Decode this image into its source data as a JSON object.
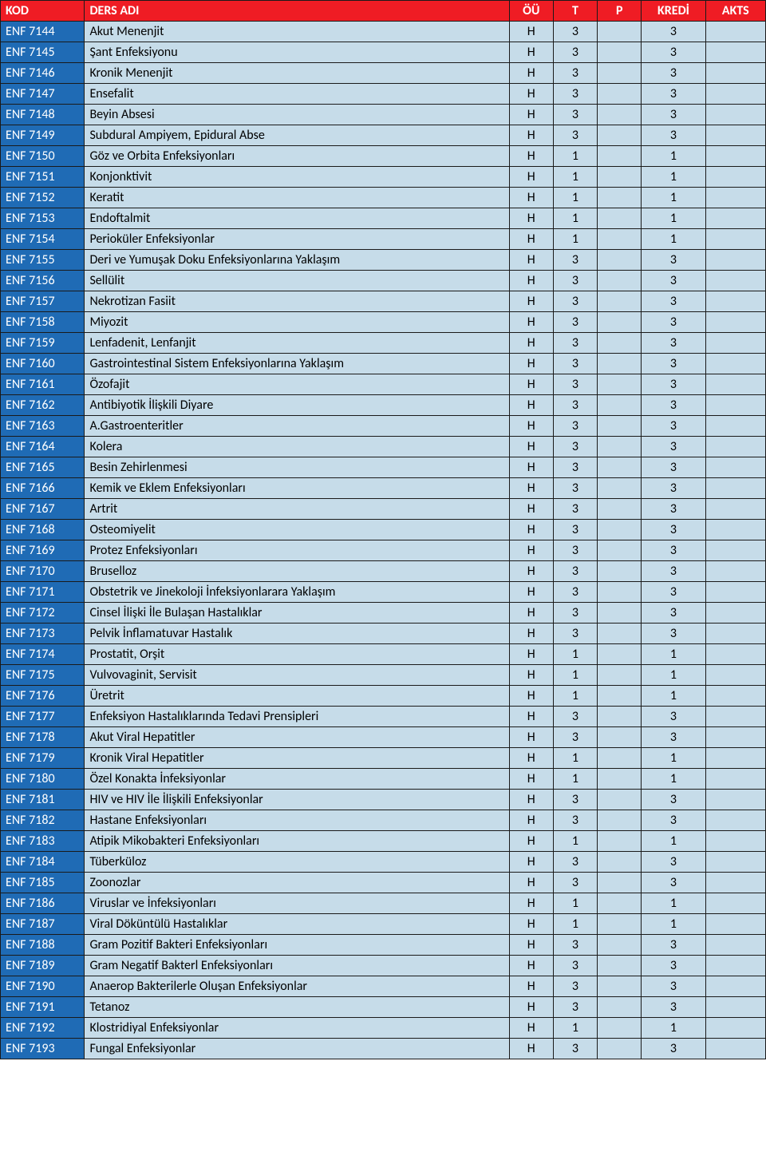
{
  "table": {
    "headers": {
      "kod": "KOD",
      "ders": "DERS ADI",
      "ou": "ÖÜ",
      "t": "T",
      "p": "P",
      "kredi": "KREDİ",
      "akts": "AKTS"
    },
    "rows": [
      {
        "kod": "ENF 7144",
        "ders": "Akut Menenjit",
        "ou": "H",
        "t": "3",
        "p": "",
        "kredi": "3",
        "akts": ""
      },
      {
        "kod": "ENF 7145",
        "ders": "Şant Enfeksiyonu",
        "ou": "H",
        "t": "3",
        "p": "",
        "kredi": "3",
        "akts": ""
      },
      {
        "kod": "ENF 7146",
        "ders": "Kronik Menenjit",
        "ou": "H",
        "t": "3",
        "p": "",
        "kredi": "3",
        "akts": ""
      },
      {
        "kod": "ENF 7147",
        "ders": "Ensefalit",
        "ou": "H",
        "t": "3",
        "p": "",
        "kredi": "3",
        "akts": ""
      },
      {
        "kod": "ENF 7148",
        "ders": "Beyin Absesi",
        "ou": "H",
        "t": "3",
        "p": "",
        "kredi": "3",
        "akts": ""
      },
      {
        "kod": "ENF 7149",
        "ders": "Subdural Ampiyem, Epidural Abse",
        "ou": "H",
        "t": "3",
        "p": "",
        "kredi": "3",
        "akts": ""
      },
      {
        "kod": "ENF 7150",
        "ders": "Göz ve Orbita Enfeksiyonları",
        "ou": "H",
        "t": "1",
        "p": "",
        "kredi": "1",
        "akts": ""
      },
      {
        "kod": "ENF 7151",
        "ders": "Konjonktivit",
        "ou": "H",
        "t": "1",
        "p": "",
        "kredi": "1",
        "akts": ""
      },
      {
        "kod": "ENF 7152",
        "ders": "Keratit",
        "ou": "H",
        "t": "1",
        "p": "",
        "kredi": "1",
        "akts": ""
      },
      {
        "kod": "ENF 7153",
        "ders": "Endoftalmit",
        "ou": "H",
        "t": "1",
        "p": "",
        "kredi": "1",
        "akts": ""
      },
      {
        "kod": "ENF 7154",
        "ders": "Perioküler Enfeksiyonlar",
        "ou": "H",
        "t": "1",
        "p": "",
        "kredi": "1",
        "akts": ""
      },
      {
        "kod": "ENF 7155",
        "ders": "Deri ve Yumuşak Doku Enfeksiyonlarına Yaklaşım",
        "ou": "H",
        "t": "3",
        "p": "",
        "kredi": "3",
        "akts": ""
      },
      {
        "kod": "ENF 7156",
        "ders": "Sellülit",
        "ou": "H",
        "t": "3",
        "p": "",
        "kredi": "3",
        "akts": ""
      },
      {
        "kod": "ENF 7157",
        "ders": "Nekrotizan Fasiit",
        "ou": "H",
        "t": "3",
        "p": "",
        "kredi": "3",
        "akts": ""
      },
      {
        "kod": "ENF 7158",
        "ders": "Miyozit",
        "ou": "H",
        "t": "3",
        "p": "",
        "kredi": "3",
        "akts": ""
      },
      {
        "kod": "ENF 7159",
        "ders": "Lenfadenit, Lenfanjit",
        "ou": "H",
        "t": "3",
        "p": "",
        "kredi": "3",
        "akts": ""
      },
      {
        "kod": "ENF 7160",
        "ders": "Gastrointestinal Sistem Enfeksiyonlarına Yaklaşım",
        "ou": "H",
        "t": "3",
        "p": "",
        "kredi": "3",
        "akts": ""
      },
      {
        "kod": "ENF 7161",
        "ders": "Özofajit",
        "ou": "H",
        "t": "3",
        "p": "",
        "kredi": "3",
        "akts": ""
      },
      {
        "kod": "ENF 7162",
        "ders": "Antibiyotik İlişkili Diyare",
        "ou": "H",
        "t": "3",
        "p": "",
        "kredi": "3",
        "akts": ""
      },
      {
        "kod": "ENF 7163",
        "ders": "A.Gastroenteritler",
        "ou": "H",
        "t": "3",
        "p": "",
        "kredi": "3",
        "akts": ""
      },
      {
        "kod": "ENF 7164",
        "ders": "Kolera",
        "ou": "H",
        "t": "3",
        "p": "",
        "kredi": "3",
        "akts": ""
      },
      {
        "kod": "ENF 7165",
        "ders": "Besin Zehirlenmesi",
        "ou": "H",
        "t": "3",
        "p": "",
        "kredi": "3",
        "akts": ""
      },
      {
        "kod": "ENF 7166",
        "ders": "Kemik ve Eklem Enfeksiyonları",
        "ou": "H",
        "t": "3",
        "p": "",
        "kredi": "3",
        "akts": ""
      },
      {
        "kod": "ENF 7167",
        "ders": "Artrit",
        "ou": "H",
        "t": "3",
        "p": "",
        "kredi": "3",
        "akts": ""
      },
      {
        "kod": "ENF 7168",
        "ders": "Osteomiyelit",
        "ou": "H",
        "t": "3",
        "p": "",
        "kredi": "3",
        "akts": ""
      },
      {
        "kod": "ENF 7169",
        "ders": "Protez Enfeksiyonları",
        "ou": "H",
        "t": "3",
        "p": "",
        "kredi": "3",
        "akts": ""
      },
      {
        "kod": "ENF 7170",
        "ders": "Bruselloz",
        "ou": "H",
        "t": "3",
        "p": "",
        "kredi": "3",
        "akts": ""
      },
      {
        "kod": "ENF 7171",
        "ders": "Obstetrik ve Jinekoloji İnfeksiyonlarara Yaklaşım",
        "ou": "H",
        "t": "3",
        "p": "",
        "kredi": "3",
        "akts": ""
      },
      {
        "kod": "ENF 7172",
        "ders": "Cinsel İlişki İle Bulaşan Hastalıklar",
        "ou": "H",
        "t": "3",
        "p": "",
        "kredi": "3",
        "akts": ""
      },
      {
        "kod": "ENF 7173",
        "ders": "Pelvik İnflamatuvar Hastalık",
        "ou": "H",
        "t": "3",
        "p": "",
        "kredi": "3",
        "akts": ""
      },
      {
        "kod": "ENF 7174",
        "ders": "Prostatit,  Orşit",
        "ou": "H",
        "t": "1",
        "p": "",
        "kredi": "1",
        "akts": ""
      },
      {
        "kod": "ENF 7175",
        "ders": "Vulvovaginit, Servisit",
        "ou": "H",
        "t": "1",
        "p": "",
        "kredi": "1",
        "akts": ""
      },
      {
        "kod": "ENF 7176",
        "ders": "Üretrit",
        "ou": "H",
        "t": "1",
        "p": "",
        "kredi": "1",
        "akts": ""
      },
      {
        "kod": "ENF 7177",
        "ders": "Enfeksiyon Hastalıklarında Tedavi Prensipleri",
        "ou": "H",
        "t": "3",
        "p": "",
        "kredi": "3",
        "akts": ""
      },
      {
        "kod": "ENF 7178",
        "ders": "Akut Viral Hepatitler",
        "ou": "H",
        "t": "3",
        "p": "",
        "kredi": "3",
        "akts": ""
      },
      {
        "kod": "ENF 7179",
        "ders": "Kronik Viral Hepatitler",
        "ou": "H",
        "t": "1",
        "p": "",
        "kredi": "1",
        "akts": ""
      },
      {
        "kod": "ENF 7180",
        "ders": "Özel Konakta İnfeksiyonlar",
        "ou": "H",
        "t": "1",
        "p": "",
        "kredi": "1",
        "akts": ""
      },
      {
        "kod": "ENF 7181",
        "ders": "HIV ve HIV İle İlişkili Enfeksiyonlar",
        "ou": "H",
        "t": "3",
        "p": "",
        "kredi": "3",
        "akts": ""
      },
      {
        "kod": "ENF 7182",
        "ders": "Hastane Enfeksiyonları",
        "ou": "H",
        "t": "3",
        "p": "",
        "kredi": "3",
        "akts": ""
      },
      {
        "kod": "ENF 7183",
        "ders": "Atipik Mikobakteri Enfeksiyonları",
        "ou": "H",
        "t": "1",
        "p": "",
        "kredi": "1",
        "akts": ""
      },
      {
        "kod": "ENF 7184",
        "ders": "Tüberküloz",
        "ou": "H",
        "t": "3",
        "p": "",
        "kredi": "3",
        "akts": ""
      },
      {
        "kod": "ENF 7185",
        "ders": "Zoonozlar",
        "ou": "H",
        "t": "3",
        "p": "",
        "kredi": "3",
        "akts": ""
      },
      {
        "kod": "ENF 7186",
        "ders": "Viruslar ve İnfeksiyonları",
        "ou": "H",
        "t": "1",
        "p": "",
        "kredi": "1",
        "akts": ""
      },
      {
        "kod": "ENF 7187",
        "ders": "Viral Döküntülü Hastalıklar",
        "ou": "H",
        "t": "1",
        "p": "",
        "kredi": "1",
        "akts": ""
      },
      {
        "kod": "ENF 7188",
        "ders": "Gram Pozitif Bakteri Enfeksiyonları",
        "ou": "H",
        "t": "3",
        "p": "",
        "kredi": "3",
        "akts": ""
      },
      {
        "kod": "ENF 7189",
        "ders": "Gram Negatif Bakterl Enfeksiyonları",
        "ou": "H",
        "t": "3",
        "p": "",
        "kredi": "3",
        "akts": ""
      },
      {
        "kod": "ENF 7190",
        "ders": "Anaerop Bakterilerle Oluşan Enfeksiyonlar",
        "ou": "H",
        "t": "3",
        "p": "",
        "kredi": "3",
        "akts": ""
      },
      {
        "kod": "ENF 7191",
        "ders": "Tetanoz",
        "ou": "H",
        "t": "3",
        "p": "",
        "kredi": "3",
        "akts": ""
      },
      {
        "kod": "ENF 7192",
        "ders": "Klostridiyal Enfeksiyonlar",
        "ou": "H",
        "t": "1",
        "p": "",
        "kredi": "1",
        "akts": ""
      },
      {
        "kod": "ENF 7193",
        "ders": "Fungal Enfeksiyonlar",
        "ou": "H",
        "t": "3",
        "p": "",
        "kredi": "3",
        "akts": ""
      }
    ]
  }
}
